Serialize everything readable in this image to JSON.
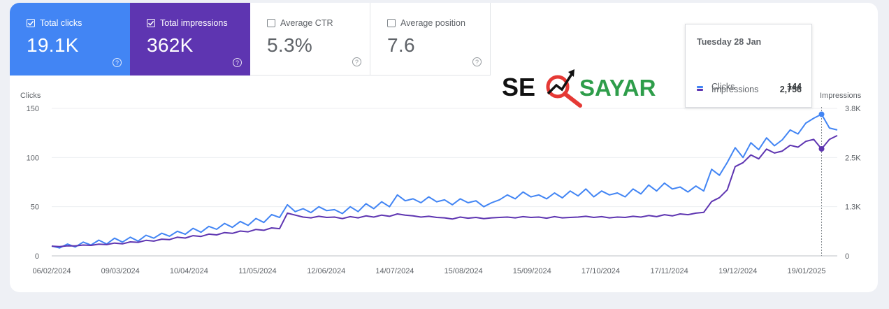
{
  "metrics": [
    {
      "label": "Total clicks",
      "value": "19.1K",
      "checked": true
    },
    {
      "label": "Total impressions",
      "value": "362K",
      "checked": true
    },
    {
      "label": "Average CTR",
      "value": "5.3%",
      "checked": false
    },
    {
      "label": "Average position",
      "value": "7.6",
      "checked": false
    }
  ],
  "logo": {
    "part1": "SE",
    "part2": "SAYAR"
  },
  "tooltip": {
    "date": "Tuesday 28 Jan",
    "clicks_label": "Clicks",
    "clicks_value": "144",
    "impressions_label": "Impressions",
    "impressions_value": "2,756"
  },
  "colors": {
    "clicks": "#4285f4",
    "impressions": "#5e35b1",
    "logo_red": "#e53935",
    "logo_green": "#2e9d4a"
  },
  "chart_data": {
    "type": "line",
    "ylabel_left": "Clicks",
    "ylabel_right": "Impressions",
    "y_left_ticks": [
      "150",
      "100",
      "50",
      "0"
    ],
    "y_right_ticks": [
      "3.8K",
      "2.5K",
      "1.3K",
      "0"
    ],
    "ylim_left": [
      0,
      150
    ],
    "ylim_right": [
      0,
      3800
    ],
    "x_tick_labels": [
      "06/02/2024",
      "09/03/2024",
      "10/04/2024",
      "11/05/2024",
      "12/06/2024",
      "14/07/2024",
      "15/08/2024",
      "15/09/2024",
      "17/10/2024",
      "17/11/2024",
      "19/12/2024",
      "19/01/2025"
    ],
    "highlight_date": "Tuesday 28 Jan",
    "series": [
      {
        "name": "Clicks",
        "axis": "left",
        "values": [
          10,
          8,
          12,
          9,
          14,
          11,
          16,
          12,
          18,
          14,
          19,
          15,
          21,
          18,
          23,
          20,
          25,
          22,
          28,
          24,
          30,
          27,
          33,
          29,
          35,
          31,
          38,
          34,
          42,
          39,
          52,
          45,
          48,
          44,
          50,
          46,
          47,
          43,
          50,
          45,
          53,
          48,
          55,
          50,
          62,
          56,
          58,
          54,
          60,
          55,
          57,
          52,
          58,
          54,
          56,
          50,
          54,
          57,
          62,
          58,
          65,
          60,
          62,
          58,
          64,
          59,
          66,
          61,
          68,
          60,
          66,
          62,
          64,
          60,
          68,
          63,
          72,
          66,
          74,
          68,
          70,
          65,
          71,
          66,
          88,
          82,
          95,
          110,
          100,
          115,
          108,
          120,
          112,
          118,
          128,
          124,
          135,
          140,
          144,
          130,
          128
        ]
      },
      {
        "name": "Impressions",
        "axis": "right",
        "values": [
          250,
          240,
          260,
          255,
          280,
          270,
          300,
          290,
          330,
          310,
          360,
          350,
          400,
          380,
          430,
          420,
          480,
          460,
          520,
          500,
          560,
          540,
          600,
          580,
          640,
          620,
          680,
          660,
          720,
          700,
          1100,
          1050,
          1000,
          980,
          1020,
          990,
          1000,
          960,
          1010,
          980,
          1030,
          1000,
          1050,
          1020,
          1080,
          1050,
          1030,
          1000,
          1020,
          990,
          980,
          950,
          1000,
          970,
          990,
          960,
          980,
          990,
          1000,
          980,
          1010,
          990,
          1000,
          970,
          1010,
          980,
          990,
          1000,
          1020,
          990,
          1010,
          980,
          1000,
          990,
          1020,
          1000,
          1040,
          1010,
          1060,
          1030,
          1080,
          1060,
          1100,
          1120,
          1400,
          1500,
          1700,
          2300,
          2400,
          2600,
          2500,
          2750,
          2650,
          2700,
          2850,
          2800,
          2950,
          3000,
          2756,
          3000,
          3100
        ]
      }
    ]
  }
}
